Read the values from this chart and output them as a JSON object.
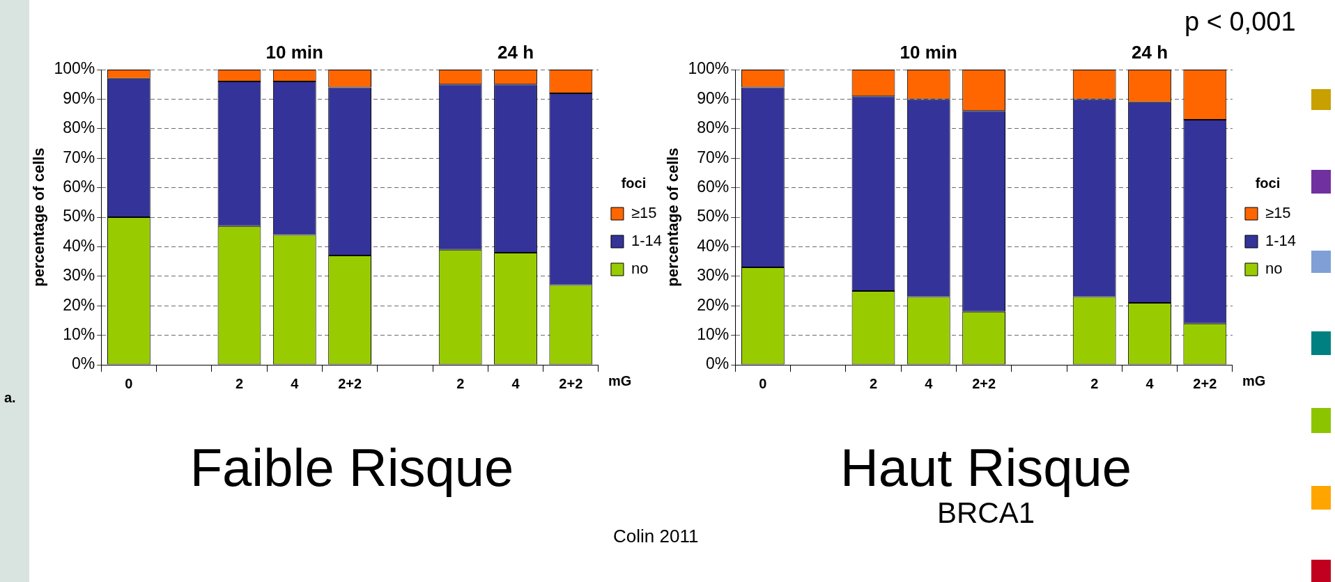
{
  "chart_data": [
    {
      "type": "bar",
      "title": "Faible Risque",
      "ylabel": "percentage of cells",
      "xlabel": "mG",
      "legend_title": "foci",
      "stacked": true,
      "legend": "right",
      "grid": "y",
      "categories": [
        "0",
        null,
        "2",
        "4",
        "2+2",
        null,
        "2",
        "4",
        "2+2"
      ],
      "series": [
        {
          "name": "no",
          "color": "#99cc00",
          "values": [
            50,
            null,
            47,
            44,
            37,
            null,
            39,
            38,
            27
          ]
        },
        {
          "name": "1-14",
          "color": "#333399",
          "values": [
            47,
            null,
            49,
            52,
            57,
            null,
            56,
            57,
            65
          ]
        },
        {
          "name": "≥15",
          "color": "#ff6600",
          "values": [
            3,
            null,
            4,
            4,
            6,
            null,
            5,
            5,
            8
          ]
        }
      ],
      "ylim": [
        0,
        100
      ],
      "yticks": [
        {
          "value": 0,
          "label": "0%"
        },
        {
          "value": 10,
          "label": "10%"
        },
        {
          "value": 20,
          "label": "20%"
        },
        {
          "value": 30,
          "label": "30%"
        },
        {
          "value": 40,
          "label": "40%"
        },
        {
          "value": 50,
          "label": "50%"
        },
        {
          "value": 60,
          "label": "60%"
        },
        {
          "value": 70,
          "label": "70%"
        },
        {
          "value": 80,
          "label": "80%"
        },
        {
          "value": 90,
          "label": "90%"
        },
        {
          "value": 100,
          "label": "100%"
        }
      ],
      "annotations": [
        "10 min",
        "24 h",
        "a.",
        "Colin 2011"
      ]
    },
    {
      "type": "bar",
      "title": "Haut Risque",
      "subtitle": "BRCA1",
      "ylabel": "percentage of cells",
      "xlabel": "mG",
      "legend_title": "foci",
      "stacked": true,
      "legend": "right",
      "grid": "y",
      "categories": [
        "0",
        null,
        "2",
        "4",
        "2+2",
        null,
        "2",
        "4",
        "2+2"
      ],
      "series": [
        {
          "name": "no",
          "color": "#99cc00",
          "values": [
            33,
            null,
            25,
            23,
            18,
            null,
            23,
            21,
            14
          ]
        },
        {
          "name": "1-14",
          "color": "#333399",
          "values": [
            61,
            null,
            66,
            67,
            68,
            null,
            67,
            68,
            69
          ]
        },
        {
          "name": "≥15",
          "color": "#ff6600",
          "values": [
            6,
            null,
            9,
            10,
            14,
            null,
            10,
            11,
            17
          ]
        }
      ],
      "ylim": [
        0,
        100
      ],
      "yticks": [
        {
          "value": 0,
          "label": "0%"
        },
        {
          "value": 10,
          "label": "10%"
        },
        {
          "value": 20,
          "label": "20%"
        },
        {
          "value": 30,
          "label": "30%"
        },
        {
          "value": 40,
          "label": "40%"
        },
        {
          "value": 50,
          "label": "50%"
        },
        {
          "value": 60,
          "label": "60%"
        },
        {
          "value": 70,
          "label": "70%"
        },
        {
          "value": 80,
          "label": "80%"
        },
        {
          "value": 90,
          "label": "90%"
        },
        {
          "value": 100,
          "label": "100%"
        }
      ],
      "annotations": [
        "10 min",
        "24 h",
        "p < 0,001"
      ]
    }
  ]
}
